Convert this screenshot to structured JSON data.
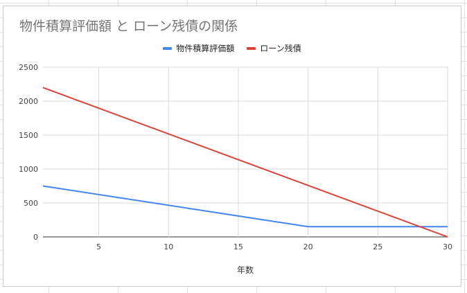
{
  "chart_data": {
    "type": "line",
    "title": "物件積算評価額 と ローン残債の関係",
    "xlabel": "年数",
    "ylabel": "",
    "xlim": [
      1,
      30
    ],
    "ylim": [
      0,
      2500
    ],
    "x_ticks": [
      5,
      10,
      15,
      20,
      25,
      30
    ],
    "y_ticks": [
      0,
      500,
      1000,
      1500,
      2000,
      2500
    ],
    "grid": true,
    "legend_position": "top",
    "series": [
      {
        "name": "物件積算評価額",
        "color": "#4285f4",
        "x": [
          1,
          20,
          30
        ],
        "y": [
          750,
          150,
          150
        ]
      },
      {
        "name": "ローン残債",
        "color": "#db4437",
        "x": [
          1,
          30
        ],
        "y": [
          2200,
          0
        ]
      }
    ]
  }
}
